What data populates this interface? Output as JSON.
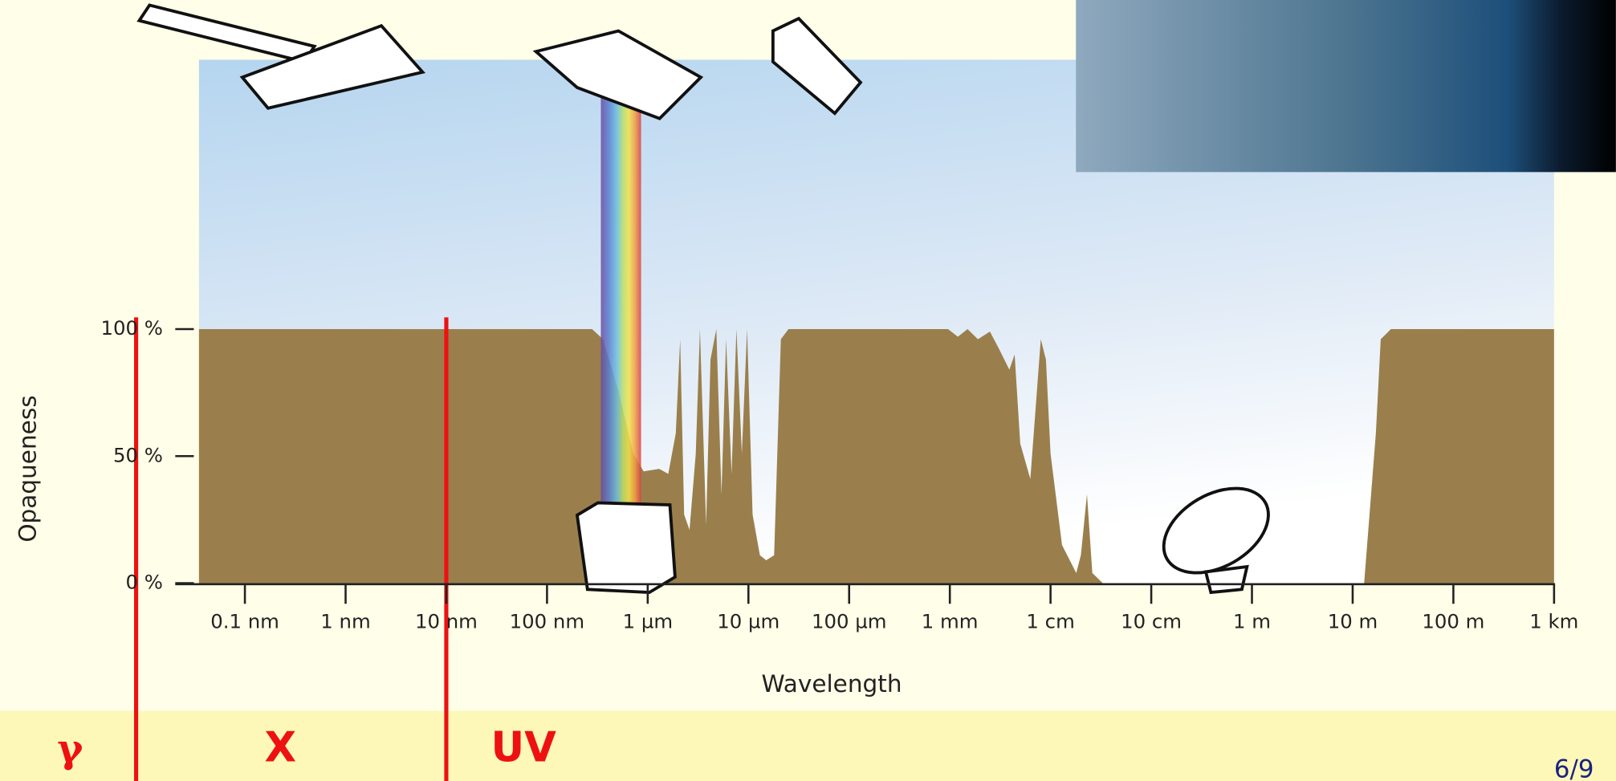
{
  "chart_data": {
    "type": "area",
    "x_label": "Wavelength",
    "y_label": "Opaqueness",
    "xscale": "log",
    "xlim": [
      3.5e-11,
      1000
    ],
    "ylim": [
      0,
      206
    ],
    "xticks": [
      {
        "value": 1e-10,
        "label": "0.1 nm"
      },
      {
        "value": 1e-09,
        "label": "1 nm"
      },
      {
        "value": 1e-08,
        "label": "10 nm"
      },
      {
        "value": 1e-07,
        "label": "100 nm"
      },
      {
        "value": 1e-06,
        "label": "1 µm"
      },
      {
        "value": 1e-05,
        "label": "10 µm"
      },
      {
        "value": 0.0001,
        "label": "100 µm"
      },
      {
        "value": 0.001,
        "label": "1 mm"
      },
      {
        "value": 0.01,
        "label": "1 cm"
      },
      {
        "value": 0.1,
        "label": "10 cm"
      },
      {
        "value": 1,
        "label": "1 m"
      },
      {
        "value": 10,
        "label": "10 m"
      },
      {
        "value": 100,
        "label": "100 m"
      },
      {
        "value": 1000,
        "label": "1 km"
      }
    ],
    "yticks": [
      {
        "value": 0,
        "label": "0 %"
      },
      {
        "value": 50,
        "label": "50 %"
      },
      {
        "value": 100,
        "label": "100 %"
      }
    ],
    "color": "#9a7f4c",
    "x": [
      3.5e-11,
      2.8e-07,
      3.6e-07,
      5.1e-07,
      7.2e-07,
      9.1e-07,
      1.3e-06,
      1.6e-06,
      1.9e-06,
      2.1e-06,
      2.3e-06,
      2.6e-06,
      3e-06,
      3.3e-06,
      3.8e-06,
      4.2e-06,
      4.8e-06,
      5.4e-06,
      6e-06,
      6.8e-06,
      7.6e-06,
      8.6e-06,
      9.7e-06,
      1.1e-05,
      1.3e-05,
      1.5e-05,
      1.8e-05,
      2.1e-05,
      2.5e-05,
      0.00096,
      0.0012,
      0.0015,
      0.0019,
      0.0025,
      0.0031,
      0.0039,
      0.0044,
      0.005,
      0.0063,
      0.008,
      0.009,
      0.01,
      0.013,
      0.018,
      0.02,
      0.023,
      0.026,
      0.033,
      13,
      17,
      19,
      24,
      1000
    ],
    "values": [
      100,
      100,
      96,
      76,
      51,
      44,
      45,
      43,
      59,
      96,
      27,
      21,
      51,
      100,
      23,
      88,
      100,
      35,
      96,
      43,
      100,
      51,
      100,
      27,
      11,
      9,
      11,
      96,
      100,
      100,
      97,
      100,
      96,
      99,
      92,
      84,
      90,
      55,
      41,
      96,
      88,
      51,
      15,
      4,
      11,
      35,
      4,
      0,
      0,
      59,
      96,
      100,
      100
    ]
  },
  "bands": [
    "γ",
    "X",
    "UV"
  ],
  "page_number": "6/9"
}
